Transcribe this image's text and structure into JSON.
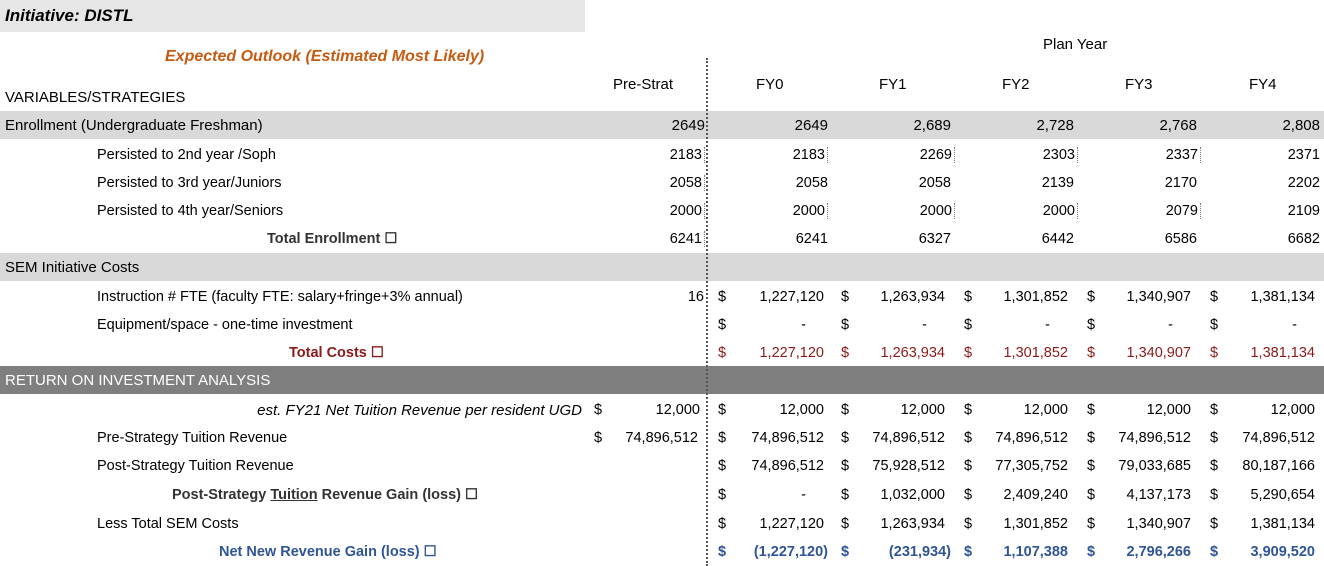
{
  "title": "Initiative: DISTL",
  "outlook": "Expected Outlook (Estimated Most Likely)",
  "plan_year": "Plan Year",
  "variables_header": "VARIABLES/STRATEGIES",
  "columns": [
    "Pre-Strat",
    "FY0",
    "FY1",
    "FY2",
    "FY3",
    "FY4"
  ],
  "enrollment": {
    "label": "Enrollment (Undergraduate Freshman)",
    "values": [
      "2649",
      "2649",
      "2,689",
      "2,728",
      "2,768",
      "2,808"
    ]
  },
  "persist2": {
    "label": "Persisted to 2nd year /Soph",
    "values": [
      "2183",
      "2183",
      "2269",
      "2303",
      "2337",
      "2371"
    ]
  },
  "persist3": {
    "label": "Persisted to 3rd year/Juniors",
    "values": [
      "2058",
      "2058",
      "2058",
      "2139",
      "2170",
      "2202"
    ]
  },
  "persist4": {
    "label": "Persisted to 4th year/Seniors",
    "values": [
      "2000",
      "2000",
      "2000",
      "2000",
      "2079",
      "2109"
    ]
  },
  "total_enrollment": {
    "label": "Total Enrollment ☐",
    "values": [
      "6241",
      "6241",
      "6327",
      "6442",
      "6586",
      "6682"
    ]
  },
  "costs_header": "SEM Initiative Costs",
  "instruction": {
    "label": "Instruction # FTE (faculty FTE: salary+fringe+3% annual)",
    "pre": "16",
    "values": [
      "1,227,120",
      "1,263,934",
      "1,301,852",
      "1,340,907",
      "1,381,134"
    ]
  },
  "equipment": {
    "label": "Equipment/space - one-time investment",
    "values": [
      "-",
      "-",
      "-",
      "-",
      "-"
    ]
  },
  "total_costs": {
    "label": "Total Costs ☐",
    "values": [
      "1,227,120",
      "1,263,934",
      "1,301,852",
      "1,340,907",
      "1,381,134"
    ]
  },
  "roi_header": "RETURN ON INVESTMENT ANALYSIS",
  "tuition_rate": {
    "label": "est. FY21 Net Tuition Revenue per resident UGD",
    "values": [
      "12,000",
      "12,000",
      "12,000",
      "12,000",
      "12,000",
      "12,000"
    ]
  },
  "pre_strategy": {
    "label": "Pre-Strategy Tuition Revenue",
    "values": [
      "74,896,512",
      "74,896,512",
      "74,896,512",
      "74,896,512",
      "74,896,512",
      "74,896,512"
    ]
  },
  "post_strategy": {
    "label": "Post-Strategy Tuition Revenue",
    "values": [
      "74,896,512",
      "75,928,512",
      "77,305,752",
      "79,033,685",
      "80,187,166"
    ]
  },
  "gain": {
    "label_a": "Post-Strategy ",
    "label_u": "Tuition",
    "label_b": " Revenue Gain (loss) ☐",
    "values": [
      "-",
      "1,032,000",
      "2,409,240",
      "4,137,173",
      "5,290,654"
    ]
  },
  "less_costs": {
    "label": "Less Total SEM Costs",
    "values": [
      "1,227,120",
      "1,263,934",
      "1,301,852",
      "1,340,907",
      "1,381,134"
    ]
  },
  "net_gain": {
    "label": "Net New Revenue Gain (loss) ☐",
    "values": [
      "(1,227,120)",
      "(231,934)",
      "1,107,388",
      "2,796,266",
      "3,909,520"
    ]
  },
  "currency": "$",
  "colors": {
    "outlook": "#c55a11",
    "total_costs": "#8b1a1a",
    "net_gain": "#2f5597",
    "band_light": "#d9d9d9",
    "band_dark": "#7f7f7f"
  }
}
